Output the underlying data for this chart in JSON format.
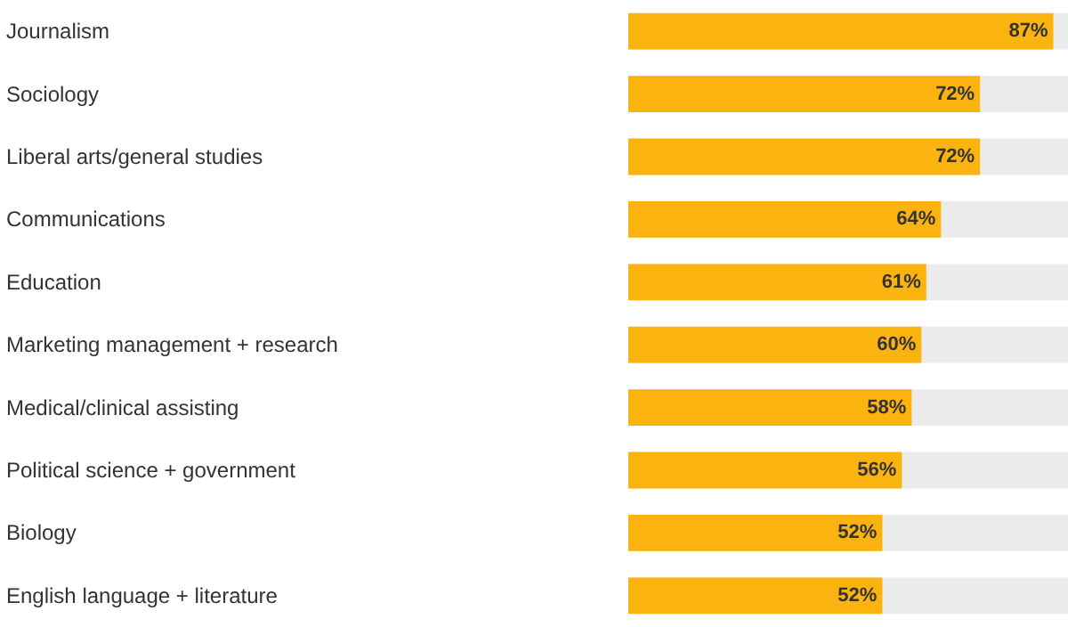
{
  "chart_data": {
    "type": "bar",
    "orientation": "horizontal",
    "categories": [
      "Journalism",
      "Sociology",
      "Liberal arts/general studies",
      "Communications",
      "Education",
      "Marketing management + research",
      "Medical/clinical assisting",
      "Political science + government",
      "Biology",
      "English language + literature"
    ],
    "values": [
      87,
      72,
      72,
      64,
      61,
      60,
      58,
      56,
      52,
      52
    ],
    "value_labels": [
      "87%",
      "72%",
      "72%",
      "64%",
      "61%",
      "60%",
      "58%",
      "56%",
      "52%",
      "52%"
    ],
    "color": "#fbb40f",
    "xlim": [
      0,
      90
    ],
    "tick_labels": "y",
    "grid": false
  }
}
